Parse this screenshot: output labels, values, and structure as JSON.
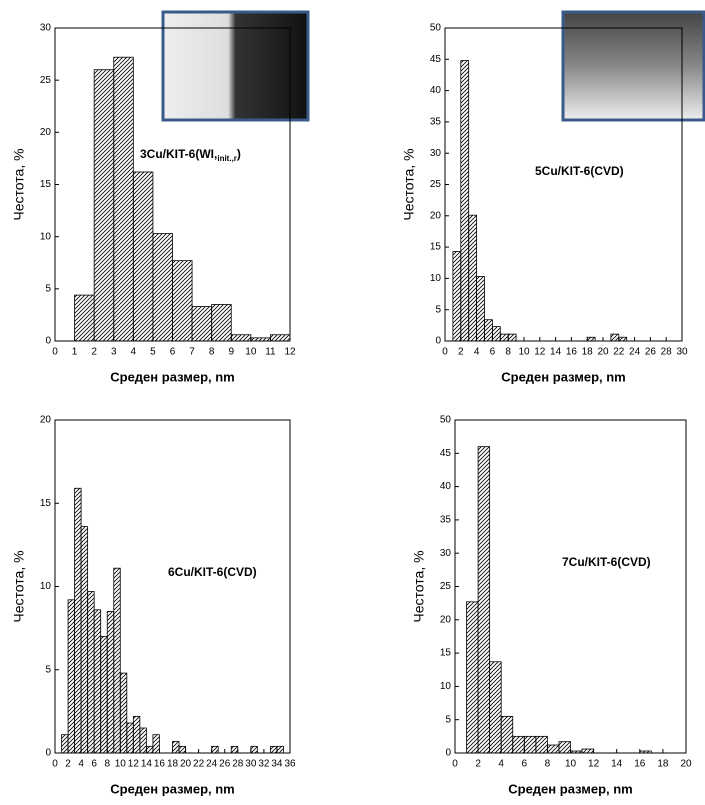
{
  "chart_data": [
    {
      "type": "histogram",
      "ylabel": "Честота, %",
      "xlabel": "Среден размер, nm",
      "annotation": {
        "main": "3Cu/KIT-6(WI,",
        "sub": "init.,r",
        "end": ")"
      },
      "bins": [
        1,
        2,
        3,
        4,
        5,
        6,
        7,
        8,
        9,
        10,
        11,
        12
      ],
      "values": [
        4.4,
        26,
        27.2,
        16.2,
        10.3,
        7.7,
        3.3,
        3.5,
        0.6,
        0.3,
        0.6
      ],
      "xlim": [
        0,
        12
      ],
      "xticks": [
        0,
        1,
        2,
        3,
        4,
        5,
        6,
        7,
        8,
        9,
        10,
        11,
        12
      ],
      "ylim": [
        0,
        30
      ],
      "yticks": [
        0,
        5,
        10,
        15,
        20,
        25,
        30
      ]
    },
    {
      "type": "histogram",
      "ylabel": "Честота, %",
      "xlabel": "Среден размер, nm",
      "annotation": {
        "main": "5Cu/KIT-6(CVD)"
      },
      "bins": [
        1,
        2,
        3,
        4,
        5,
        6,
        7,
        8,
        9,
        10,
        11,
        12,
        13,
        14,
        15,
        16,
        17,
        18,
        19,
        20,
        21,
        22,
        23
      ],
      "values": [
        14.3,
        44.8,
        20.1,
        10.3,
        3.4,
        2.3,
        1.1,
        1.1,
        0,
        0,
        0,
        0,
        0,
        0,
        0,
        0,
        0,
        0.6,
        0,
        0,
        1.1,
        0.6
      ],
      "xlim": [
        0,
        30
      ],
      "xticks": [
        0,
        2,
        4,
        6,
        8,
        10,
        12,
        14,
        16,
        18,
        20,
        22,
        24,
        26,
        28,
        30
      ],
      "ylim": [
        0,
        50
      ],
      "yticks": [
        0,
        5,
        10,
        15,
        20,
        25,
        30,
        35,
        40,
        45,
        50
      ]
    },
    {
      "type": "histogram",
      "ylabel": "Честота, %",
      "xlabel": "Среден размер, nm",
      "annotation": {
        "main": "6Cu/KIT-6(CVD)"
      },
      "bins": [
        1,
        2,
        3,
        4,
        5,
        6,
        7,
        8,
        9,
        10,
        11,
        12,
        13,
        14,
        15,
        16,
        17,
        18,
        19,
        20,
        21,
        22,
        23,
        24,
        25,
        26,
        27,
        28,
        29,
        30,
        31,
        32,
        33,
        34,
        35
      ],
      "values": [
        1.1,
        9.2,
        15.9,
        13.6,
        9.7,
        8.6,
        7.0,
        8.5,
        11.1,
        4.8,
        1.8,
        2.2,
        1.5,
        0.4,
        1.1,
        0,
        0,
        0.7,
        0.4,
        0,
        0,
        0,
        0,
        0.4,
        0,
        0,
        0.4,
        0,
        0,
        0.4,
        0,
        0,
        0.4,
        0.4
      ],
      "xlim": [
        0,
        36
      ],
      "xticks": [
        0,
        2,
        4,
        6,
        8,
        10,
        12,
        14,
        16,
        18,
        20,
        22,
        24,
        26,
        28,
        30,
        32,
        34,
        36
      ],
      "ylim": [
        0,
        20
      ],
      "yticks": [
        0,
        5,
        10,
        15,
        20
      ]
    },
    {
      "type": "histogram",
      "ylabel": "Честота, %",
      "xlabel": "Среден размер, nm",
      "annotation": {
        "main": "7Cu/KIT-6(CVD)"
      },
      "bins": [
        1,
        2,
        3,
        4,
        5,
        6,
        7,
        8,
        9,
        10,
        11,
        12,
        13,
        14,
        15,
        16,
        17
      ],
      "values": [
        22.7,
        46.0,
        13.7,
        5.5,
        2.5,
        2.5,
        2.5,
        1.2,
        1.7,
        0.3,
        0.6,
        0,
        0,
        0,
        0,
        0.3
      ],
      "xlim": [
        0,
        20
      ],
      "xticks": [
        0,
        2,
        4,
        6,
        8,
        10,
        12,
        14,
        16,
        18,
        20
      ],
      "ylim": [
        0,
        50
      ],
      "yticks": [
        0,
        5,
        10,
        15,
        20,
        25,
        30,
        35,
        40,
        45,
        50
      ]
    }
  ]
}
